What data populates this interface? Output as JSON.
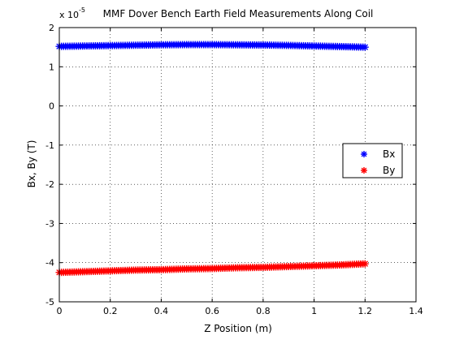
{
  "chart_data": {
    "type": "scatter",
    "title": "MMF Dover Bench Earth Field Measurements Along Coil",
    "xlabel": "Z Position (m)",
    "ylabel": "Bx, By (T)",
    "y_multiplier_base": "x 10",
    "y_multiplier_exp": "-5",
    "xlim": [
      0,
      1.4
    ],
    "ylim": [
      -5,
      2
    ],
    "x_ticks": [
      {
        "value": 0,
        "label": "0"
      },
      {
        "value": 0.2,
        "label": "0.2"
      },
      {
        "value": 0.4,
        "label": "0.4"
      },
      {
        "value": 0.6,
        "label": "0.6"
      },
      {
        "value": 0.8,
        "label": "0.8"
      },
      {
        "value": 1.0,
        "label": "1"
      },
      {
        "value": 1.2,
        "label": "1.2"
      },
      {
        "value": 1.4,
        "label": "1.4"
      }
    ],
    "y_ticks": [
      {
        "value": 2,
        "label": "2"
      },
      {
        "value": 1,
        "label": "1"
      },
      {
        "value": 0,
        "label": "0"
      },
      {
        "value": -1,
        "label": "-1"
      },
      {
        "value": -2,
        "label": "-2"
      },
      {
        "value": -3,
        "label": "-3"
      },
      {
        "value": -4,
        "label": "-4"
      },
      {
        "value": -5,
        "label": "-5"
      }
    ],
    "grid": true,
    "grid_style": "dotted",
    "legend_position": "right",
    "marker": "*",
    "series": [
      {
        "name": "Bx",
        "color": "#0000ff",
        "x": [
          0.0,
          0.1,
          0.2,
          0.3,
          0.4,
          0.5,
          0.6,
          0.7,
          0.8,
          0.9,
          1.0,
          1.1,
          1.2
        ],
        "y": [
          1.52,
          1.53,
          1.54,
          1.55,
          1.56,
          1.565,
          1.565,
          1.56,
          1.555,
          1.545,
          1.53,
          1.515,
          1.5
        ]
      },
      {
        "name": "By",
        "color": "#ff0000",
        "x": [
          0.0,
          0.1,
          0.2,
          0.3,
          0.4,
          0.5,
          0.6,
          0.7,
          0.8,
          0.9,
          1.0,
          1.1,
          1.2
        ],
        "y": [
          -4.25,
          -4.23,
          -4.21,
          -4.19,
          -4.18,
          -4.16,
          -4.15,
          -4.13,
          -4.12,
          -4.1,
          -4.08,
          -4.06,
          -4.03
        ]
      }
    ]
  }
}
